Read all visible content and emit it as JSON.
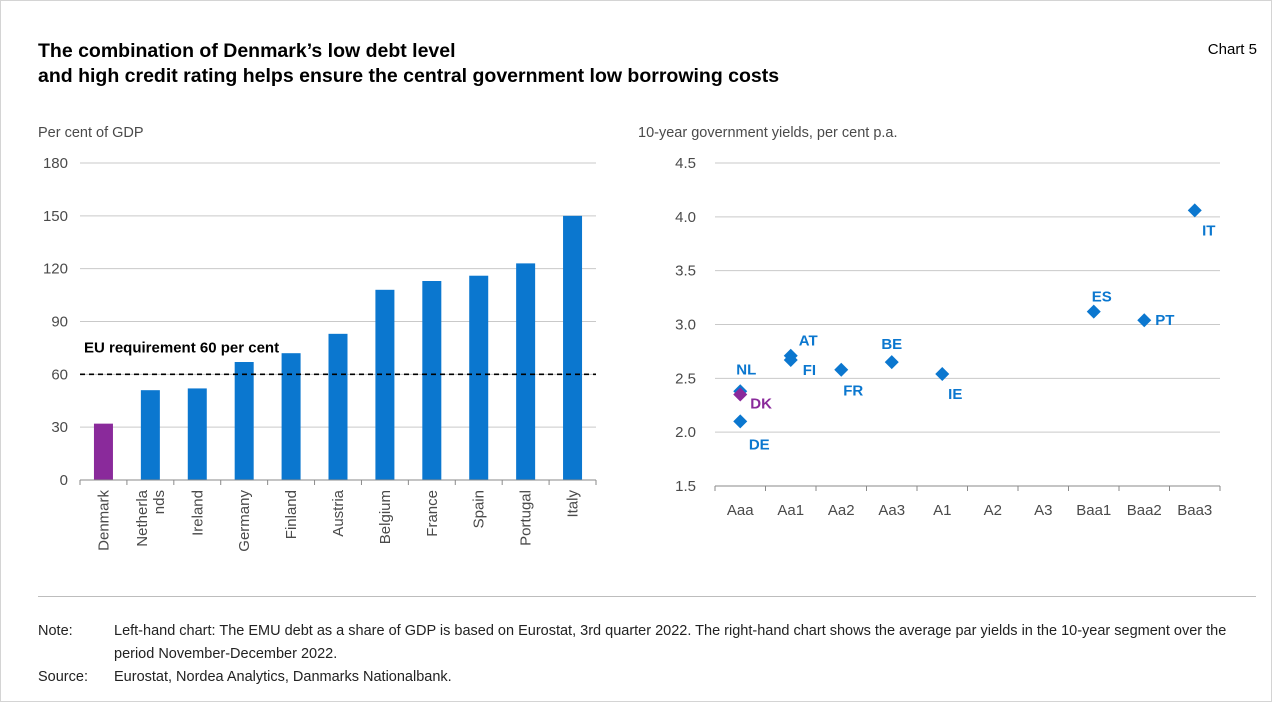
{
  "header": {
    "title_line1": "The combination of Denmark’s low debt level",
    "title_line2": "and high credit rating helps ensure the central government low borrowing costs",
    "chart_number": "Chart 5"
  },
  "footer": {
    "note_label": "Note:",
    "note_text": "Left-hand chart: The EMU debt as a share of GDP is based on Eurostat, 3rd quarter 2022. The right-hand chart shows the average par yields in the 10-year segment over the period November-December 2022.",
    "source_label": "Source:",
    "source_text": "Eurostat, Nordea Analytics, Danmarks Nationalbank."
  },
  "colors": {
    "highlight": "#8a2a9b",
    "series": "#0b77cf",
    "reference_line": "#000000"
  },
  "chart_data": [
    {
      "type": "bar",
      "ylabel": "Per cent of GDP",
      "ylim": [
        0,
        180
      ],
      "yticks": [
        0,
        30,
        60,
        90,
        120,
        150,
        180
      ],
      "grid": true,
      "categories": [
        "Denmark",
        "Netherlands",
        "Ireland",
        "Germany",
        "Finland",
        "Austria",
        "Belgium",
        "France",
        "Spain",
        "Portugal",
        "Italy"
      ],
      "category_labels": [
        [
          "Denmark"
        ],
        [
          "Netherla",
          "nds"
        ],
        [
          "Ireland"
        ],
        [
          "Germany"
        ],
        [
          "Finland"
        ],
        [
          "Austria"
        ],
        [
          "Belgium"
        ],
        [
          "France"
        ],
        [
          "Spain"
        ],
        [
          "Portugal"
        ],
        [
          "Italy"
        ]
      ],
      "values": [
        32,
        51,
        52,
        67,
        72,
        83,
        108,
        113,
        116,
        123,
        150
      ],
      "highlight_category": "Denmark",
      "reference_line": {
        "value": 60,
        "label": "EU requirement 60 per cent"
      }
    },
    {
      "type": "scatter",
      "ylabel": "10-year government yields, per cent p.a.",
      "ylim": [
        1.5,
        4.5
      ],
      "yticks": [
        "1.5",
        "2.0",
        "2.5",
        "3.0",
        "3.5",
        "4.0",
        "4.5"
      ],
      "x_categories": [
        "Aaa",
        "Aa1",
        "Aa2",
        "Aa3",
        "A1",
        "A2",
        "A3",
        "Baa1",
        "Baa2",
        "Baa3"
      ],
      "grid": true,
      "points": [
        {
          "label": "NL",
          "rating": "Aaa",
          "y": 2.38,
          "label_pos": "above"
        },
        {
          "label": "DK",
          "rating": "Aaa",
          "y": 2.35,
          "label_pos": "right",
          "highlight": true
        },
        {
          "label": "DE",
          "rating": "Aaa",
          "y": 2.1,
          "label_pos": "below"
        },
        {
          "label": "AT",
          "rating": "Aa1",
          "y": 2.71,
          "label_pos": "above-right"
        },
        {
          "label": "FI",
          "rating": "Aa1",
          "y": 2.67,
          "label_pos": "below-right"
        },
        {
          "label": "FR",
          "rating": "Aa2",
          "y": 2.58,
          "label_pos": "below"
        },
        {
          "label": "BE",
          "rating": "Aa3",
          "y": 2.65,
          "label_pos": "above"
        },
        {
          "label": "IE",
          "rating": "A1",
          "y": 2.54,
          "label_pos": "below"
        },
        {
          "label": "ES",
          "rating": "Baa1",
          "y": 3.12,
          "label_pos": "above"
        },
        {
          "label": "PT",
          "rating": "Baa2",
          "y": 3.04,
          "label_pos": "right"
        },
        {
          "label": "IT",
          "rating": "Baa3",
          "y": 4.06,
          "label_pos": "below"
        }
      ]
    }
  ]
}
